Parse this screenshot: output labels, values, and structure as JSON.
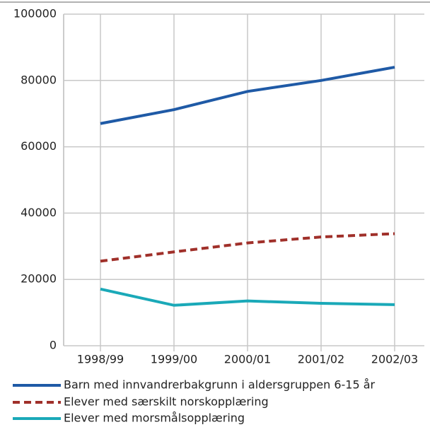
{
  "chart_data": {
    "type": "line",
    "categories": [
      "1998/99",
      "1999/00",
      "2000/01",
      "2001/02",
      "2002/03"
    ],
    "series": [
      {
        "name": "Barn med innvandrerbakgrunn i aldersgruppen 6-15 år",
        "color": "#1f5aa6",
        "style": "solid",
        "values": [
          67000,
          71200,
          76700,
          80000,
          84000
        ]
      },
      {
        "name": "Elever med særskilt norskopplæring",
        "color": "#a0302a",
        "style": "dashed",
        "values": [
          25500,
          28300,
          31000,
          32800,
          33800
        ]
      },
      {
        "name": "Elever med morsmålsopplæring",
        "color": "#1aa9b8",
        "style": "solid",
        "values": [
          17100,
          12200,
          13500,
          12800,
          12400
        ]
      }
    ],
    "ylim": [
      0,
      100000
    ],
    "yticks": [
      0,
      20000,
      40000,
      60000,
      80000,
      100000
    ],
    "grid": true
  }
}
